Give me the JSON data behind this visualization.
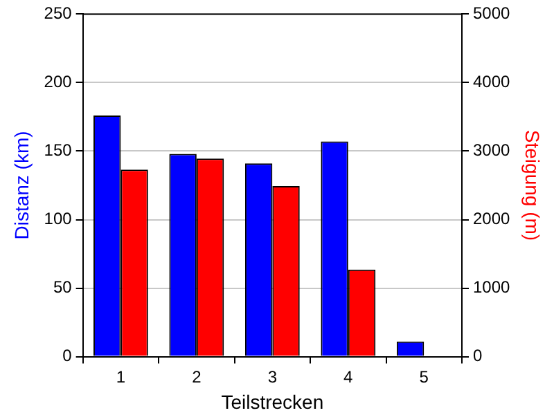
{
  "chart_data": {
    "type": "bar",
    "xlabel": "Teilstrecken",
    "ylabel": "Distanz (km)",
    "y2label": "Steigung (m)",
    "categories": [
      "1",
      "2",
      "3",
      "4",
      "5"
    ],
    "series": [
      {
        "color": "#0000ff",
        "values": [
          176,
          148,
          141,
          157,
          11
        ]
      },
      {
        "color": "#ff0000",
        "axis": "y2",
        "values": [
          2730,
          2890,
          2490,
          1270,
          null
        ]
      }
    ],
    "ylim": [
      0,
      250
    ],
    "yticks": [
      0,
      50,
      100,
      150,
      200,
      250
    ],
    "y2lim": [
      0,
      5000
    ],
    "y2ticks": [
      0,
      1000,
      2000,
      3000,
      4000,
      5000
    ],
    "grid": "y",
    "legend": false
  }
}
